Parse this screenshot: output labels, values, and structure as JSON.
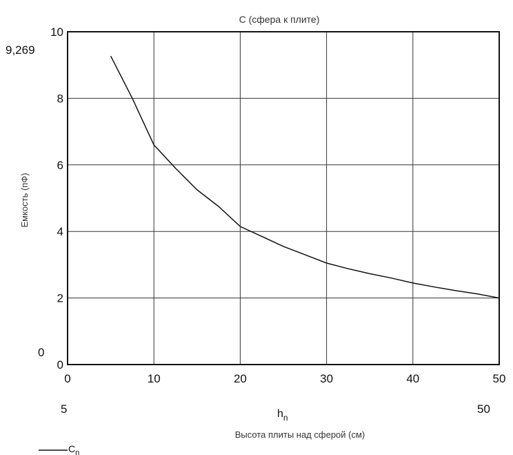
{
  "chart_data": {
    "type": "line",
    "title": "C (сфера  к  плите)",
    "xlabel": "Высота плиты над сферой (см)",
    "x_var": "h",
    "x_var_sub": "n",
    "ylabel": "Емкость (пФ)",
    "xlim": [
      0,
      50
    ],
    "ylim": [
      0,
      10
    ],
    "x_ticks": [
      "0",
      "10",
      "20",
      "30",
      "40",
      "50"
    ],
    "y_ticks": [
      "0",
      "2",
      "4",
      "6",
      "8",
      "10"
    ],
    "y_extra_ticks": [
      "0",
      "9,269"
    ],
    "x_extra_ticks": [
      "5",
      "50"
    ],
    "grid": true,
    "legend_position": "bottom-left",
    "series": [
      {
        "name": "C",
        "name_sub": "n",
        "x": [
          5,
          7.5,
          10,
          12.5,
          15,
          17.5,
          20,
          22.5,
          25,
          27.5,
          30,
          32.5,
          35,
          37.5,
          40,
          42.5,
          45,
          47.5,
          50
        ],
        "y": [
          9.269,
          8.0,
          6.6,
          5.9,
          5.25,
          4.75,
          4.15,
          3.85,
          3.55,
          3.3,
          3.05,
          2.88,
          2.73,
          2.6,
          2.45,
          2.33,
          2.22,
          2.12,
          2.0
        ]
      }
    ]
  }
}
